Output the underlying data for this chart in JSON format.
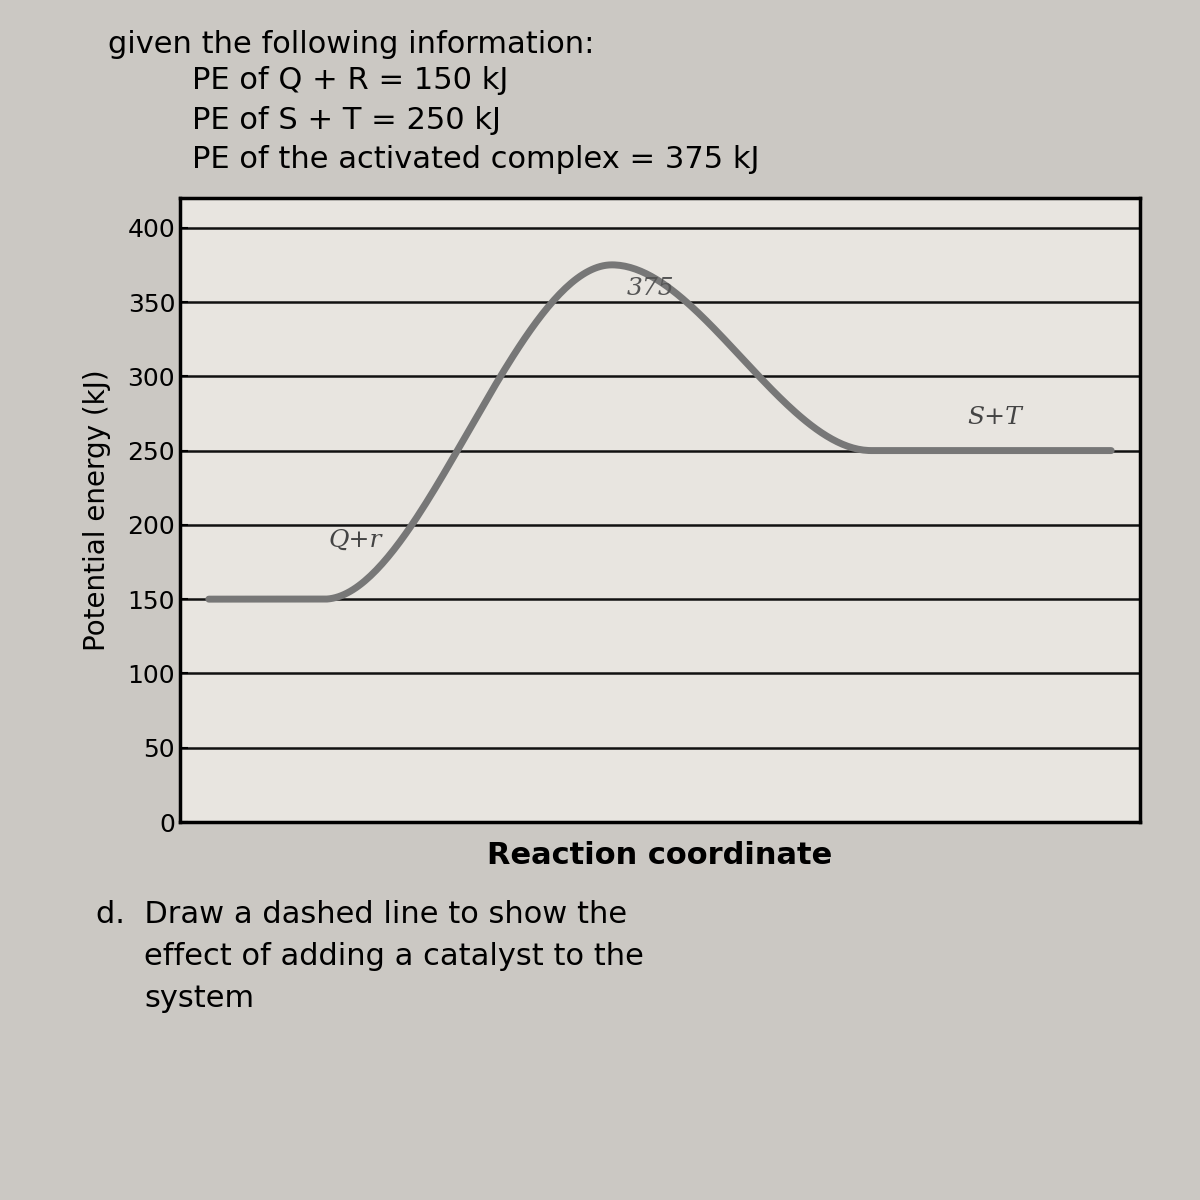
{
  "header_lines": [
    "given the following information:",
    "PE of Q + R = 150 kJ",
    "PE of S + T = 250 kJ",
    "PE of the activated complex = 375 kJ"
  ],
  "footer_text": "d.  Draw a dashed line to show the\n     effect of adding a catalyst to the\n     system",
  "pe_QR": 150,
  "pe_ST": 250,
  "pe_activated": 375,
  "ylabel": "Potential energy (kJ)",
  "xlabel": "Reaction coordinate",
  "yticks": [
    0,
    50,
    100,
    150,
    200,
    250,
    300,
    350,
    400
  ],
  "ylim": [
    0,
    420
  ],
  "label_QR": "Q+r",
  "label_ST": "S+T",
  "label_activated": "375",
  "bg_color_top": "#cbc8c3",
  "bg_color_bottom": "#d9d7d4",
  "chart_bg": "#e8e5e0",
  "curve_color": "#777777",
  "curve_linewidth": 5.0,
  "grid_color": "#111111",
  "grid_linewidth": 1.8,
  "border_linewidth": 2.5,
  "header_fontsize": 22,
  "ylabel_fontsize": 20,
  "xlabel_fontsize": 22,
  "tick_fontsize": 18,
  "label_fontsize": 16,
  "footer_fontsize": 22
}
